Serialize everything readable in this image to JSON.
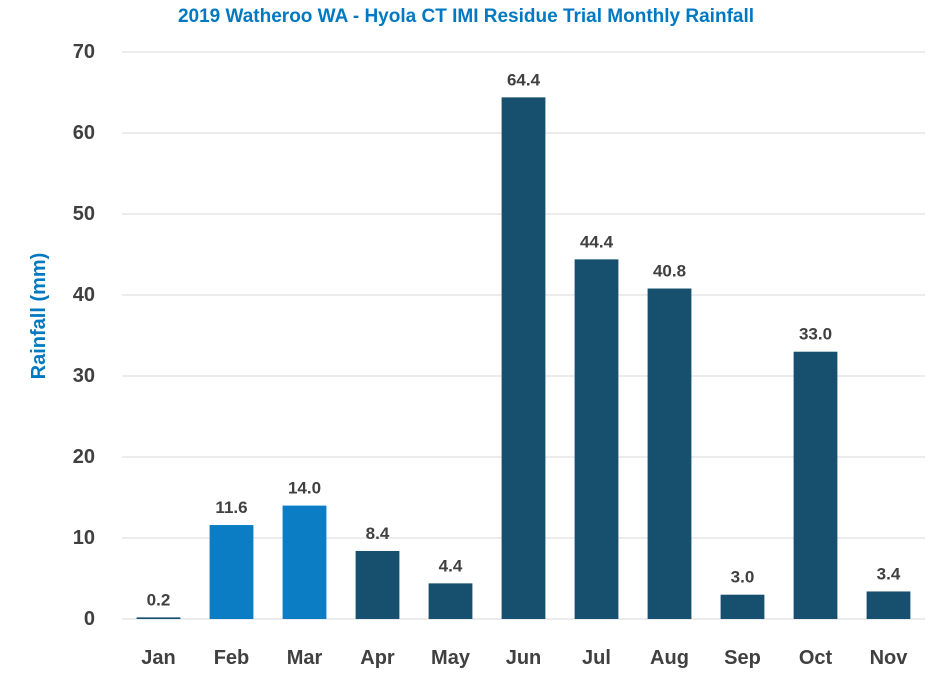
{
  "chart_data": {
    "type": "bar",
    "title": "2019 Watheroo WA - Hyola CT IMI Residue Trial Monthly Rainfall",
    "xlabel": "",
    "ylabel": "Rainfall (mm)",
    "ylim": [
      0,
      70
    ],
    "yticks": [
      0,
      10,
      20,
      30,
      40,
      50,
      60,
      70
    ],
    "grid": true,
    "categories": [
      "Jan",
      "Feb",
      "Mar",
      "Apr",
      "May",
      "Jun",
      "Jul",
      "Aug",
      "Sep",
      "Oct",
      "Nov"
    ],
    "values": [
      0.2,
      11.6,
      14.0,
      8.4,
      4.4,
      64.4,
      44.4,
      40.8,
      3.0,
      33.0,
      3.4
    ],
    "data_labels": [
      "0.2",
      "11.6",
      "14.0",
      "8.4",
      "4.4",
      "64.4",
      "44.4",
      "40.8",
      "3.0",
      "33.0",
      "3.4"
    ],
    "bar_colors": [
      "#17506f",
      "#0a7dc4",
      "#0a7dc4",
      "#17506f",
      "#17506f",
      "#17506f",
      "#17506f",
      "#17506f",
      "#17506f",
      "#17506f",
      "#17506f"
    ],
    "colors": {
      "title": "#0079c1",
      "ylabel": "#0079c1",
      "grid": "#d9d9d9",
      "text": "#404040"
    }
  }
}
